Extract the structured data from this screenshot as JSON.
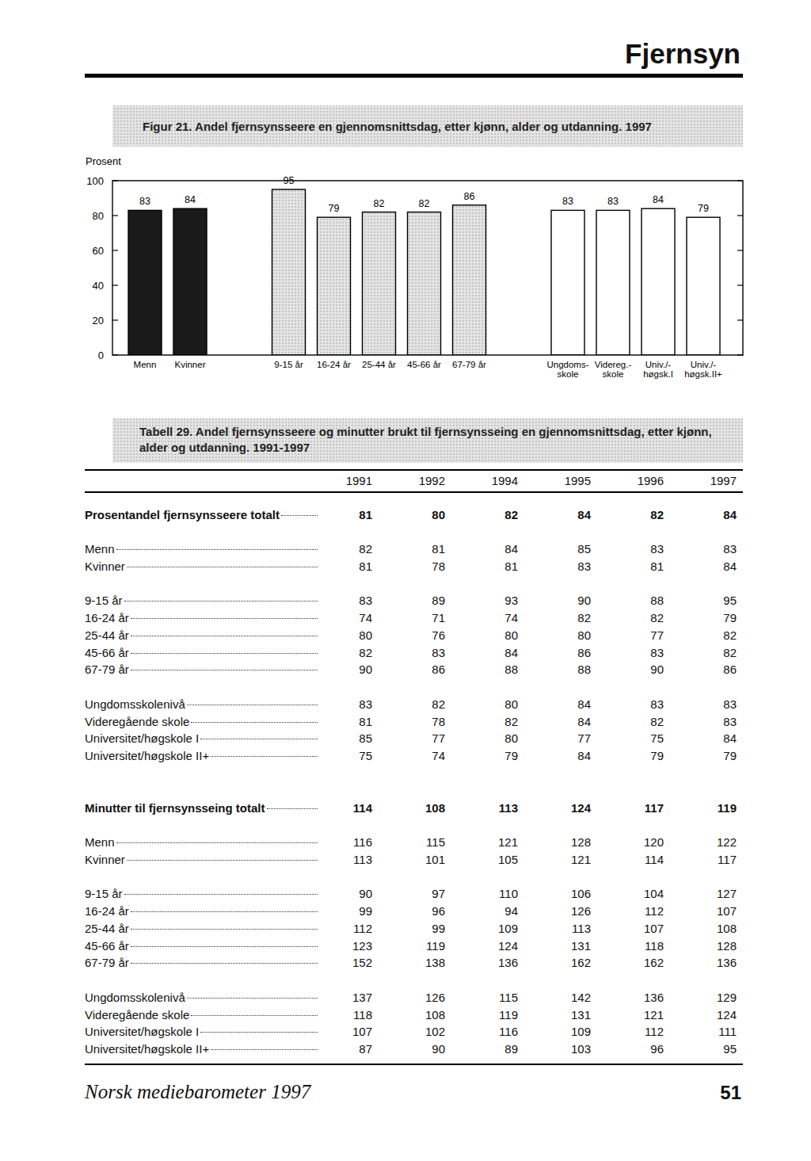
{
  "header": {
    "title": "Fjernsyn"
  },
  "chart_data": {
    "type": "bar",
    "title": "Figur 21. Andel fjernsynsseere en gjennomsnittsdag, etter kjønn, alder og utdanning. 1997",
    "ylabel": "Prosent",
    "categories": [
      "Menn",
      "Kvinner",
      "9-15 år",
      "16-24 år",
      "25-44 år",
      "45-66 år",
      "67-79 år",
      "Ungdoms-\nskole",
      "Videreg.-\nskole",
      "Univ./-\nhøgsk.I",
      "Univ./-\nhøgsk.II+"
    ],
    "values": [
      83,
      84,
      95,
      79,
      82,
      82,
      86,
      83,
      83,
      84,
      79
    ],
    "colors": [
      "#1a1a1a",
      "#1a1a1a",
      "#d2d2d2",
      "#d2d2d2",
      "#d2d2d2",
      "#d2d2d2",
      "#d2d2d2",
      "#ffffff",
      "#ffffff",
      "#ffffff",
      "#ffffff"
    ],
    "ylim": [
      0,
      100
    ],
    "yticks": [
      0,
      20,
      40,
      60,
      80,
      100
    ],
    "grid": false,
    "data_labels": true
  },
  "table": {
    "title": "Tabell 29. Andel fjernsynsseere og minutter brukt til fjernsynsseing en gjennomsnittsdag, etter kjønn, alder og utdanning. 1991-1997",
    "columns": [
      1991,
      1992,
      1994,
      1995,
      1996,
      1997
    ],
    "sections": [
      {
        "total": {
          "label": "Prosentandel fjernsynsseere totalt",
          "values": [
            81,
            80,
            82,
            84,
            82,
            84
          ]
        },
        "groups": [
          [
            {
              "label": "Menn",
              "values": [
                82,
                81,
                84,
                85,
                83,
                83
              ]
            },
            {
              "label": "Kvinner",
              "values": [
                81,
                78,
                81,
                83,
                81,
                84
              ]
            }
          ],
          [
            {
              "label": "9-15 år",
              "values": [
                83,
                89,
                93,
                90,
                88,
                95
              ]
            },
            {
              "label": "16-24 år",
              "values": [
                74,
                71,
                74,
                82,
                82,
                79
              ]
            },
            {
              "label": "25-44 år",
              "values": [
                80,
                76,
                80,
                80,
                77,
                82
              ]
            },
            {
              "label": "45-66 år",
              "values": [
                82,
                83,
                84,
                86,
                83,
                82
              ]
            },
            {
              "label": "67-79 år",
              "values": [
                90,
                86,
                88,
                88,
                90,
                86
              ]
            }
          ],
          [
            {
              "label": "Ungdomsskolenivå",
              "values": [
                83,
                82,
                80,
                84,
                83,
                83
              ]
            },
            {
              "label": "Videregående skole",
              "values": [
                81,
                78,
                82,
                84,
                82,
                83
              ]
            },
            {
              "label": "Universitet/høgskole I",
              "values": [
                85,
                77,
                80,
                77,
                75,
                84
              ]
            },
            {
              "label": "Universitet/høgskole II+",
              "values": [
                75,
                74,
                79,
                84,
                79,
                79
              ]
            }
          ]
        ]
      },
      {
        "total": {
          "label": "Minutter til fjernsynsseing totalt",
          "values": [
            114,
            108,
            113,
            124,
            117,
            119
          ]
        },
        "groups": [
          [
            {
              "label": "Menn",
              "values": [
                116,
                115,
                121,
                128,
                120,
                122
              ]
            },
            {
              "label": "Kvinner",
              "values": [
                113,
                101,
                105,
                121,
                114,
                117
              ]
            }
          ],
          [
            {
              "label": "9-15 år",
              "values": [
                90,
                97,
                110,
                106,
                104,
                127
              ]
            },
            {
              "label": "16-24 år",
              "values": [
                99,
                96,
                94,
                126,
                112,
                107
              ]
            },
            {
              "label": "25-44 år",
              "values": [
                112,
                99,
                109,
                113,
                107,
                108
              ]
            },
            {
              "label": "45-66 år",
              "values": [
                123,
                119,
                124,
                131,
                118,
                128
              ]
            },
            {
              "label": "67-79 år",
              "values": [
                152,
                138,
                136,
                162,
                162,
                136
              ]
            }
          ],
          [
            {
              "label": "Ungdomsskolenivå",
              "values": [
                137,
                126,
                115,
                142,
                136,
                129
              ]
            },
            {
              "label": "Videregående skole",
              "values": [
                118,
                108,
                119,
                131,
                121,
                124
              ]
            },
            {
              "label": "Universitet/høgskole I",
              "values": [
                107,
                102,
                116,
                109,
                112,
                111
              ]
            },
            {
              "label": "Universitet/høgskole II+",
              "values": [
                87,
                90,
                89,
                103,
                96,
                95
              ]
            }
          ]
        ]
      }
    ]
  },
  "footer": {
    "publication": "Norsk mediebarometer 1997",
    "page_number": 51
  }
}
